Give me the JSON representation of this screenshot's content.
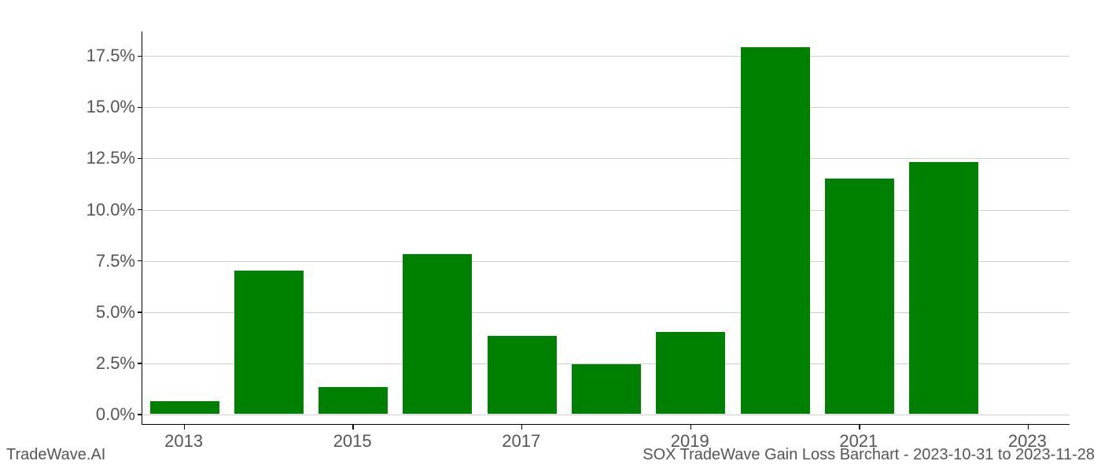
{
  "chart": {
    "type": "bar",
    "categories": [
      "2013",
      "2014",
      "2015",
      "2016",
      "2017",
      "2018",
      "2019",
      "2020",
      "2021",
      "2022",
      "2023"
    ],
    "values": [
      0.6,
      7.0,
      1.3,
      7.8,
      3.8,
      2.4,
      4.0,
      17.9,
      11.5,
      12.3,
      0.0
    ],
    "bar_color": "#008000",
    "bar_width": 0.82,
    "background_color": "#ffffff",
    "grid_color": "#b0b0b0",
    "axis_color": "#000000",
    "tick_label_color": "#555555",
    "ylim": [
      -0.5,
      18.7
    ],
    "yticks": [
      0.0,
      2.5,
      5.0,
      7.5,
      10.0,
      12.5,
      15.0,
      17.5
    ],
    "ytick_labels": [
      "0.0%",
      "2.5%",
      "5.0%",
      "7.5%",
      "10.0%",
      "12.5%",
      "15.0%",
      "17.5%"
    ],
    "xtick_positions": [
      0,
      2,
      4,
      6,
      8,
      10
    ],
    "xtick_labels": [
      "2013",
      "2015",
      "2017",
      "2019",
      "2021",
      "2023"
    ],
    "label_fontsize": 22,
    "footer_fontsize": 20
  },
  "footer": {
    "left": "TradeWave.AI",
    "right": "SOX TradeWave Gain Loss Barchart - 2023-10-31 to 2023-11-28"
  }
}
